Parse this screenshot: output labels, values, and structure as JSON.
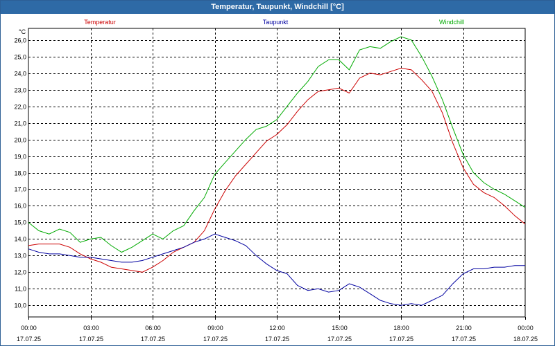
{
  "window": {
    "title": "Temperatur, Taupunkt, Windchill [°C]"
  },
  "chart_data": {
    "type": "line",
    "title": "Temperatur, Taupunkt, Windchill [°C]",
    "ylabel": "°C",
    "ylim": [
      9.3,
      26.7
    ],
    "xlim": [
      0,
      24
    ],
    "grid": true,
    "legend": "top",
    "yticks": [
      10.0,
      11.0,
      12.0,
      13.0,
      14.0,
      15.0,
      16.0,
      17.0,
      18.0,
      19.0,
      20.0,
      21.0,
      22.0,
      23.0,
      24.0,
      25.0,
      26.0
    ],
    "ytick_labels": [
      "10,0",
      "11,0",
      "12,0",
      "13,0",
      "14,0",
      "15,0",
      "16,0",
      "17,0",
      "18,0",
      "19,0",
      "20,0",
      "21,0",
      "22,0",
      "23,0",
      "24,0",
      "25,0",
      "26,0"
    ],
    "xticks": [
      {
        "time": "00:00",
        "date": "17.07.25",
        "hour": 0
      },
      {
        "time": "03:00",
        "date": "17.07.25",
        "hour": 3
      },
      {
        "time": "06:00",
        "date": "17.07.25",
        "hour": 6
      },
      {
        "time": "09:00",
        "date": "17.07.25",
        "hour": 9
      },
      {
        "time": "12:00",
        "date": "17.07.25",
        "hour": 12
      },
      {
        "time": "15:00",
        "date": "17.07.25",
        "hour": 15
      },
      {
        "time": "18:00",
        "date": "17.07.25",
        "hour": 18
      },
      {
        "time": "21:00",
        "date": "17.07.25",
        "hour": 21
      },
      {
        "time": "00:00",
        "date": "18.07.25",
        "hour": 24
      }
    ],
    "series": [
      {
        "name": "Temperatur",
        "color": "#cc0000",
        "x": [
          0,
          0.5,
          1,
          1.5,
          2,
          2.5,
          3,
          3.5,
          4,
          4.5,
          5,
          5.5,
          6,
          6.5,
          7,
          7.5,
          8,
          8.5,
          9,
          9.5,
          10,
          10.5,
          11,
          11.5,
          12,
          12.5,
          13,
          13.5,
          14,
          14.5,
          15,
          15.5,
          16,
          16.5,
          17,
          17.5,
          18,
          18.5,
          19,
          19.5,
          20,
          20.5,
          21,
          21.5,
          22,
          22.5,
          23,
          23.5,
          24
        ],
        "values": [
          13.6,
          13.7,
          13.7,
          13.7,
          13.5,
          13.1,
          12.8,
          12.6,
          12.3,
          12.2,
          12.1,
          12.0,
          12.3,
          12.7,
          13.2,
          13.5,
          13.8,
          14.5,
          15.8,
          16.9,
          17.8,
          18.5,
          19.2,
          19.9,
          20.3,
          20.9,
          21.7,
          22.4,
          22.9,
          23.0,
          23.1,
          22.8,
          23.7,
          24.0,
          23.9,
          24.1,
          24.3,
          24.2,
          23.6,
          22.9,
          21.6,
          19.8,
          18.3,
          17.3,
          16.8,
          16.5,
          16.0,
          15.4,
          14.9
        ]
      },
      {
        "name": "Taupunkt",
        "color": "#0000a0",
        "x": [
          0,
          0.5,
          1,
          1.5,
          2,
          2.5,
          3,
          3.5,
          4,
          4.5,
          5,
          5.5,
          6,
          6.5,
          7,
          7.5,
          8,
          8.5,
          9,
          9.5,
          10,
          10.5,
          11,
          11.5,
          12,
          12.5,
          13,
          13.5,
          14,
          14.5,
          15,
          15.5,
          16,
          16.5,
          17,
          17.5,
          18,
          18.5,
          19,
          19.5,
          20,
          20.5,
          21,
          21.5,
          22,
          22.5,
          23,
          23.5,
          24
        ],
        "values": [
          13.4,
          13.2,
          13.1,
          13.1,
          13.0,
          12.9,
          12.9,
          12.8,
          12.7,
          12.6,
          12.6,
          12.7,
          12.9,
          13.1,
          13.3,
          13.5,
          13.8,
          14.0,
          14.3,
          14.1,
          13.9,
          13.6,
          13.0,
          12.5,
          12.1,
          11.9,
          11.2,
          10.9,
          11.0,
          10.8,
          10.9,
          11.3,
          11.1,
          10.7,
          10.3,
          10.1,
          10.0,
          10.1,
          10.0,
          10.3,
          10.6,
          11.3,
          11.9,
          12.2,
          12.2,
          12.3,
          12.3,
          12.4,
          12.4
        ]
      },
      {
        "name": "Windchill",
        "color": "#00aa00",
        "x": [
          0,
          0.5,
          1,
          1.5,
          2,
          2.5,
          3,
          3.5,
          4,
          4.5,
          5,
          5.5,
          6,
          6.5,
          7,
          7.5,
          8,
          8.5,
          9,
          9.5,
          10,
          10.5,
          11,
          11.5,
          12,
          12.5,
          13,
          13.5,
          14,
          14.5,
          15,
          15.5,
          16,
          16.5,
          17,
          17.5,
          18,
          18.5,
          19,
          19.5,
          20,
          20.5,
          21,
          21.5,
          22,
          22.5,
          23,
          23.5,
          24
        ],
        "values": [
          15.0,
          14.5,
          14.3,
          14.6,
          14.4,
          13.8,
          14.0,
          14.1,
          13.6,
          13.2,
          13.5,
          13.9,
          14.3,
          14.0,
          14.5,
          14.8,
          15.7,
          16.5,
          17.9,
          18.6,
          19.3,
          20.0,
          20.6,
          20.8,
          21.2,
          22.0,
          22.8,
          23.5,
          24.4,
          24.8,
          24.8,
          24.2,
          25.4,
          25.6,
          25.5,
          25.9,
          26.2,
          26.0,
          25.0,
          23.8,
          22.4,
          20.7,
          19.1,
          18.0,
          17.4,
          17.0,
          16.7,
          16.3,
          15.9
        ]
      }
    ]
  }
}
